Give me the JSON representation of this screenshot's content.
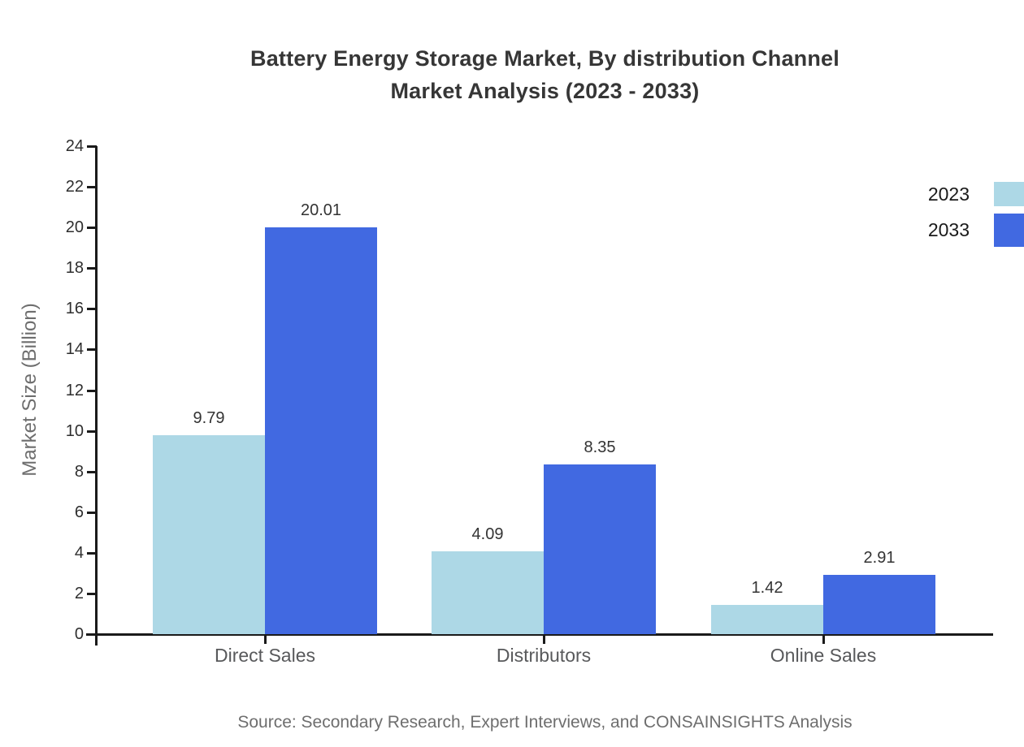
{
  "chart_data": {
    "type": "bar",
    "title_line1": "Battery Energy Storage Market, By distribution Channel",
    "title_line2": "Market Analysis (2023 - 2033)",
    "categories": [
      "Direct Sales",
      "Distributors",
      "Online Sales"
    ],
    "series": [
      {
        "name": "2023",
        "color": "#add8e6",
        "values": [
          9.79,
          4.09,
          1.42
        ]
      },
      {
        "name": "2033",
        "color": "#4169e1",
        "values": [
          20.01,
          8.35,
          2.91
        ]
      }
    ],
    "xlabel": "",
    "ylabel": "Market Size (Billion)",
    "ylim": [
      0,
      24
    ],
    "ytick_step": 2,
    "grid": false,
    "legend_position": "top-right",
    "value_label_format": "2-decimals"
  },
  "source_note": "Source: Secondary Research, Expert Interviews, and CONSAINSIGHTS Analysis",
  "colors": {
    "series_2023": "#add8e6",
    "series_2033": "#4169e1",
    "axis": "#1a1a1a",
    "title_text": "#363636",
    "tick_text": "#2e2e2e",
    "category_text": "#58595b",
    "muted_text": "#6e6e6e"
  }
}
